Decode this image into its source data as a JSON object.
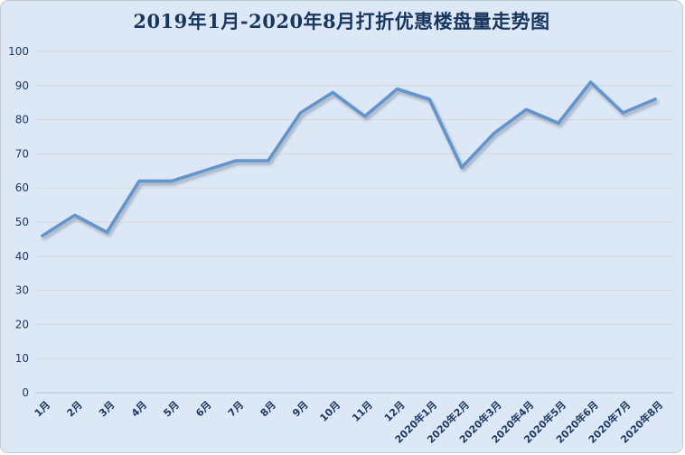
{
  "chart_data": {
    "type": "line",
    "title": "2019年1月-2020年8月打折优惠楼盘量走势图",
    "categories": [
      "1月",
      "2月",
      "3月",
      "4月",
      "5月",
      "6月",
      "7月",
      "8月",
      "9月",
      "10月",
      "11月",
      "12月",
      "2020年1月",
      "2020年2月",
      "2020年3月",
      "2020年4月",
      "2020年5月",
      "2020年6月",
      "2020年7月",
      "2020年8月"
    ],
    "series": [
      {
        "name": "打折优惠楼盘量",
        "values": [
          46,
          52,
          47,
          62,
          62,
          65,
          68,
          68,
          82,
          88,
          81,
          89,
          86,
          66,
          76,
          83,
          79,
          91,
          82,
          86
        ]
      }
    ],
    "xlabel": "",
    "ylabel": "",
    "ylim": [
      0,
      100
    ],
    "ytick_step": 10,
    "grid": true,
    "legend_position": "none",
    "colors": {
      "line": "#6295ce",
      "background": "#dce8f5",
      "gridline": "#d6d8dd",
      "axis_line": "#b9c0cb",
      "tick_label": "#1f3864",
      "title": "#17375e"
    }
  }
}
